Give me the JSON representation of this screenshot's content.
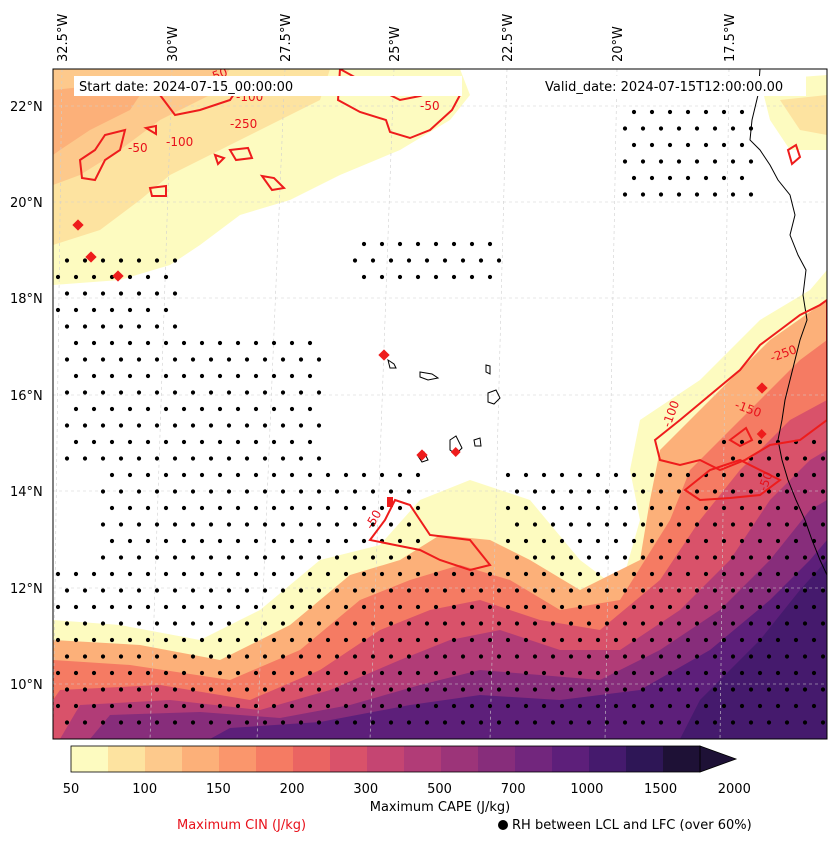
{
  "header": {
    "start_date": "Start date: 2024-07-15_00:00:00",
    "valid_date": "Valid_date: 2024-07-15T12:00:00.00"
  },
  "map": {
    "lon_labels": [
      "32.5°W",
      "30°W",
      "27.5°W",
      "25°W",
      "22.5°W",
      "20°W",
      "17.5°W"
    ],
    "lat_labels": [
      "22°N",
      "20°N",
      "18°N",
      "16°N",
      "14°N",
      "12°N",
      "10°N"
    ],
    "cin_contour_labels": [
      "-50",
      "-250",
      "-50",
      "-100",
      "-50",
      "-100",
      "-50",
      "-250",
      "-150",
      "-100",
      "-50"
    ]
  },
  "colorbar": {
    "tick_labels": [
      "50",
      "100",
      "150",
      "200",
      "300",
      "500",
      "700",
      "1000",
      "1500",
      "2000"
    ],
    "title": "Maximum CAPE (J/kg)",
    "colors": [
      "#fdfbc0",
      "#fde3a0",
      "#fdc98c",
      "#fcb079",
      "#fa966c",
      "#f57b63",
      "#ea6462",
      "#d9526a",
      "#c54572",
      "#b13c77",
      "#9c3479",
      "#872d7b",
      "#72267d",
      "#5d1f7a",
      "#451a6d",
      "#2e1656",
      "#1e1136"
    ]
  },
  "legend": {
    "cin": "Maximum CIN (J/kg)",
    "rh": "RH between LCL and LFC (over 60%)"
  }
}
